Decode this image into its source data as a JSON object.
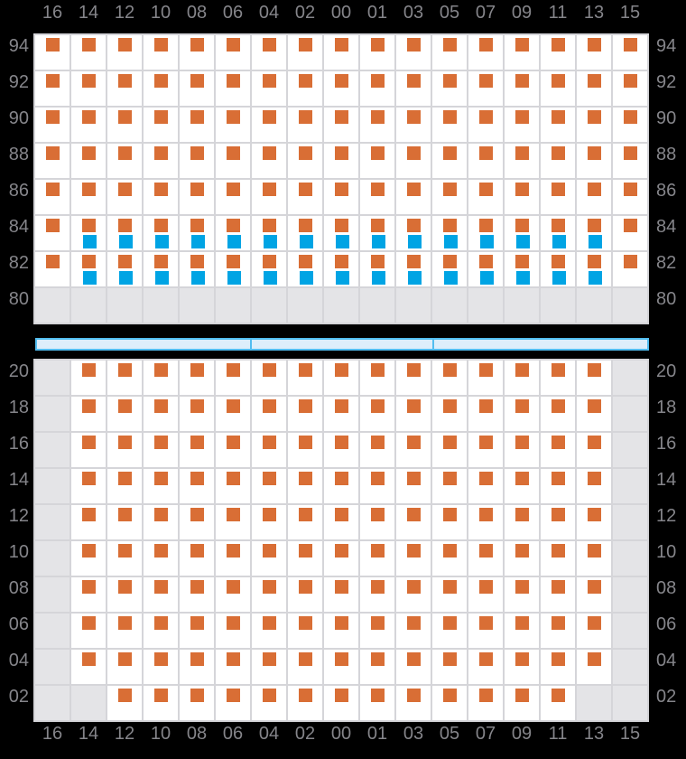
{
  "colors": {
    "background": "#000000",
    "cell_white": "#ffffff",
    "cell_disabled": "#e4e4e7",
    "grid_line": "#d5d5d9",
    "orange_marker": "#d96e35",
    "blue_marker": "#00a4e4",
    "bar_fill": "#ddeefb",
    "bar_border": "#52bdf0",
    "label_text": "#85858a"
  },
  "columns": [
    "16",
    "14",
    "12",
    "10",
    "08",
    "06",
    "04",
    "02",
    "00",
    "01",
    "03",
    "05",
    "07",
    "09",
    "11",
    "13",
    "15"
  ],
  "cell_code_legend": {
    "o": "orange marker only",
    "B": "orange marker with blue marker below",
    "x": "unavailable gray cell"
  },
  "top_panel": {
    "rows": [
      {
        "label": "94",
        "cells": "ooooooooooooooooo"
      },
      {
        "label": "92",
        "cells": "ooooooooooooooooo"
      },
      {
        "label": "90",
        "cells": "ooooooooooooooooo"
      },
      {
        "label": "88",
        "cells": "ooooooooooooooooo"
      },
      {
        "label": "86",
        "cells": "ooooooooooooooooo"
      },
      {
        "label": "84",
        "cells": "oBBBBBBBBBBBBBBBo"
      },
      {
        "label": "82",
        "cells": "oBBBBBBBBBBBBBBBo"
      },
      {
        "label": "80",
        "cells": "xxxxxxxxxxxxxxxxx"
      }
    ]
  },
  "range_bar": {
    "segment_count": 3,
    "divider_positions_pct": [
      35.1,
      64.9
    ]
  },
  "bottom_panel": {
    "rows": [
      {
        "label": "20",
        "cells": "xooooooooooooooox"
      },
      {
        "label": "18",
        "cells": "xooooooooooooooox"
      },
      {
        "label": "16",
        "cells": "xooooooooooooooox"
      },
      {
        "label": "14",
        "cells": "xooooooooooooooox"
      },
      {
        "label": "12",
        "cells": "xooooooooooooooox"
      },
      {
        "label": "10",
        "cells": "xooooooooooooooox"
      },
      {
        "label": "08",
        "cells": "xooooooooooooooox"
      },
      {
        "label": "06",
        "cells": "xooooooooooooooox"
      },
      {
        "label": "04",
        "cells": "xooooooooooooooox"
      },
      {
        "label": "02",
        "cells": "xxoooooooooooooxx"
      }
    ]
  }
}
